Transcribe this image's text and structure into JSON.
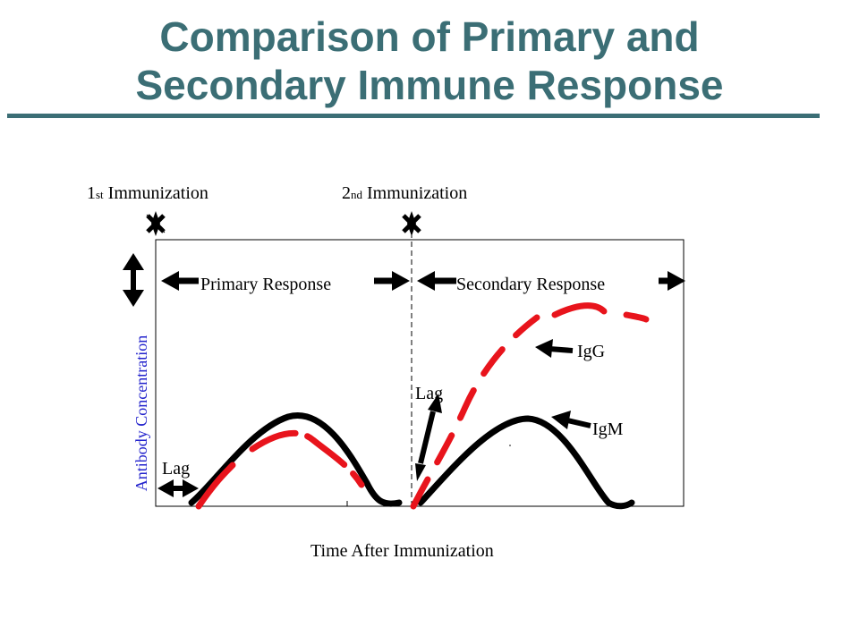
{
  "title": {
    "line1": "Comparison of Primary and",
    "line2": "Secondary Immune Response"
  },
  "labels": {
    "first_immunization_num": "1",
    "first_immunization_suffix": "st",
    "first_immunization_text": " Immunization",
    "second_immunization_num": "2",
    "second_immunization_suffix": "nd",
    "second_immunization_text": " Immunization",
    "primary_response": "Primary Response",
    "secondary_response": "Secondary Response",
    "igg": "IgG",
    "igm": "IgM",
    "lag_primary": "Lag",
    "lag_secondary": "Lag",
    "y_axis": "Antibody Concentration",
    "x_axis": "Time After Immunization"
  },
  "colors": {
    "title": "#3b6e75",
    "igg_curve": "#e8141c",
    "igm_curve": "#000000",
    "y_axis_label": "#2222cc"
  },
  "icons": [
    "star-marker-icon",
    "double-arrow-icon",
    "left-arrow-icon",
    "right-arrow-icon"
  ]
}
